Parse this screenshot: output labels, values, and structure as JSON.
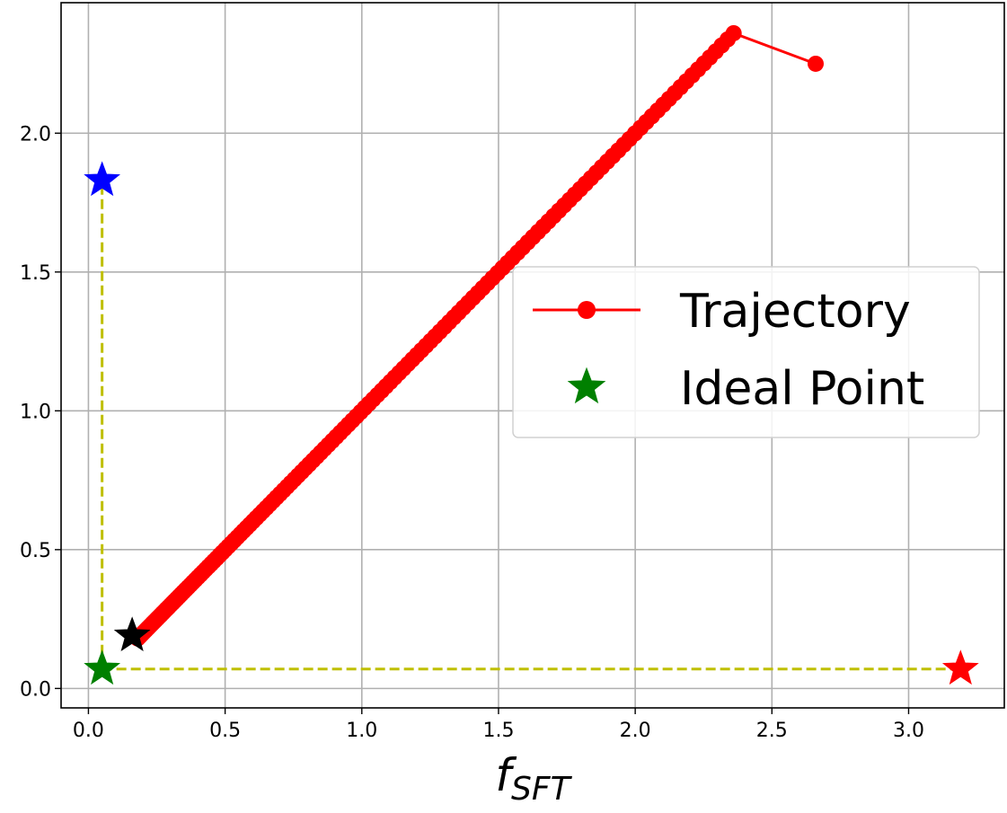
{
  "chart_data": {
    "type": "scatter",
    "title": "",
    "xlabel": "f",
    "xlabel_sub": "SFT",
    "ylabel": "",
    "xlim": [
      -0.1,
      3.35
    ],
    "ylim": [
      -0.07,
      2.47
    ],
    "grid": true,
    "legend_position": "center-right",
    "x_ticks": [
      0.0,
      0.5,
      1.0,
      1.5,
      2.0,
      2.5,
      3.0
    ],
    "x_tick_labels": [
      "0.0",
      "0.5",
      "1.0",
      "1.5",
      "2.0",
      "2.5",
      "3.0"
    ],
    "y_ticks": [
      0.0,
      0.5,
      1.0,
      1.5,
      2.0
    ],
    "y_tick_labels": [
      "0.0",
      "0.5",
      "1.0",
      "1.5",
      "2.0"
    ],
    "trajectory": {
      "name": "Trajectory",
      "color": "#ff0000",
      "start": [
        0.18,
        0.18
      ],
      "peak": [
        2.36,
        2.36
      ],
      "end": [
        2.66,
        2.25
      ],
      "num_points_diagonal": 160
    },
    "guide_lines": {
      "color": "#bfbf00",
      "vertical": {
        "x": 0.05,
        "y_from": 0.07,
        "y_to": 1.83
      },
      "horizontal": {
        "y": 0.07,
        "x_from": 0.05,
        "x_to": 3.19
      }
    },
    "stars": [
      {
        "name": "blue-star",
        "x": 0.05,
        "y": 1.83,
        "color": "#0000ff"
      },
      {
        "name": "black-star",
        "x": 0.16,
        "y": 0.19,
        "color": "#000000"
      },
      {
        "name": "ideal-point-star",
        "x": 0.05,
        "y": 0.07,
        "color": "#008000"
      },
      {
        "name": "red-star",
        "x": 3.19,
        "y": 0.07,
        "color": "#ff0000"
      }
    ],
    "legend": [
      {
        "label": "Trajectory",
        "marker": "line-dot",
        "color": "#ff0000"
      },
      {
        "label": "Ideal Point",
        "marker": "star",
        "color": "#008000"
      }
    ]
  }
}
